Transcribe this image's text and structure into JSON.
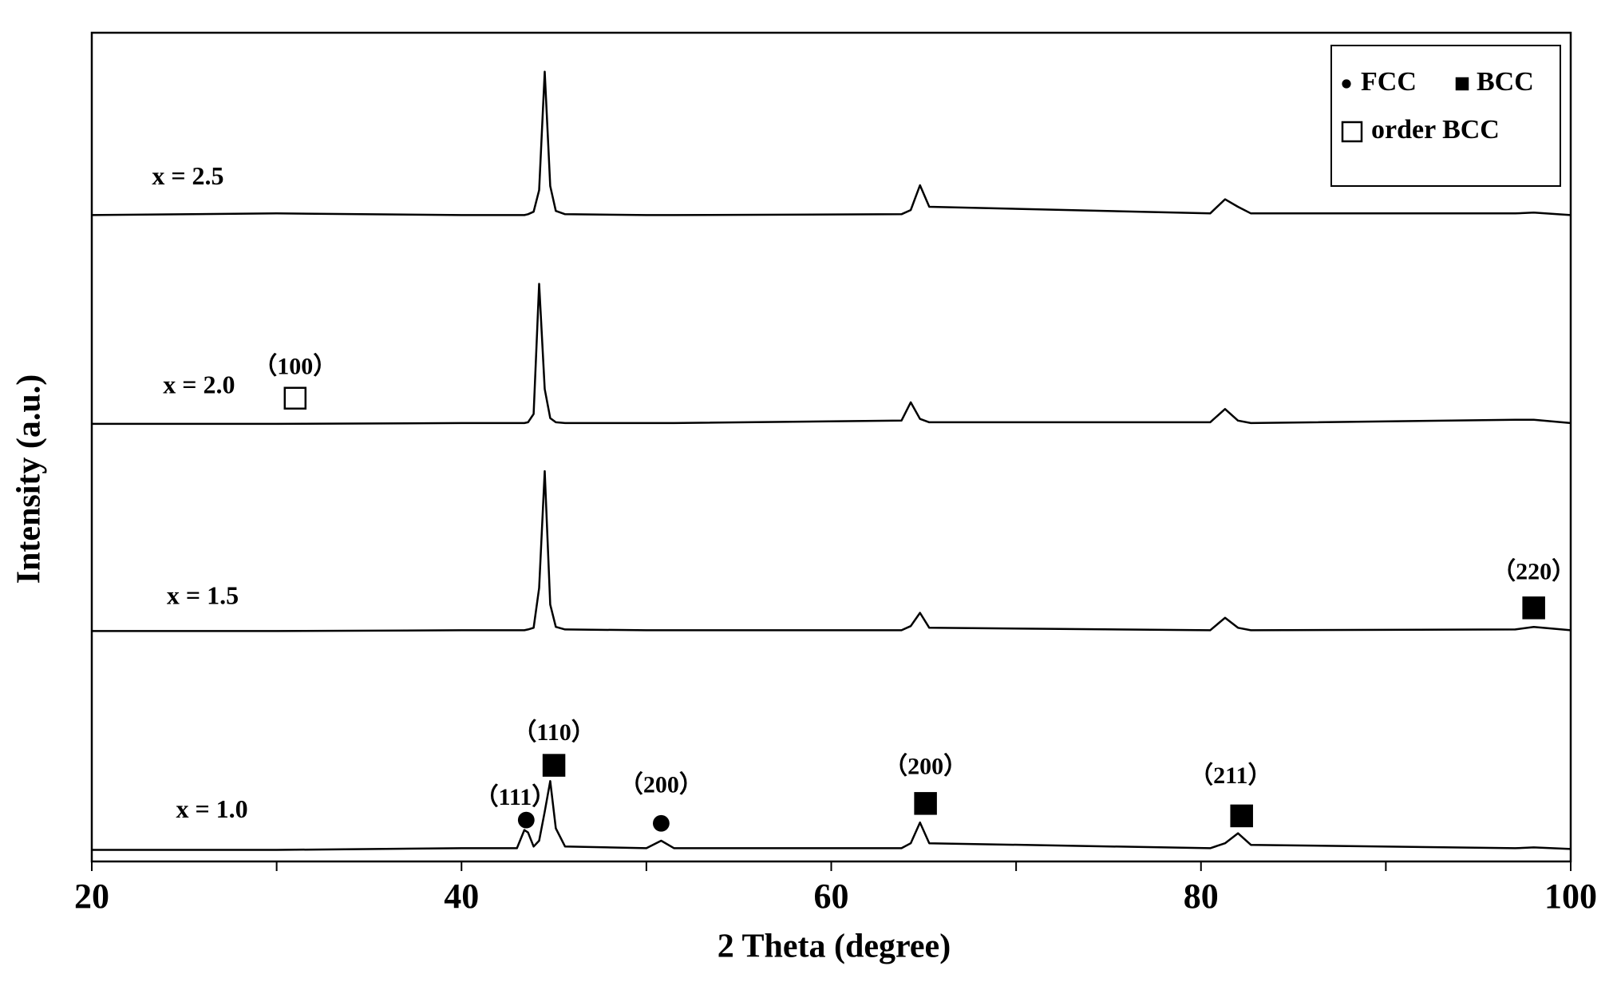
{
  "chart_data": {
    "type": "line",
    "x_label": "2 Theta (degree)",
    "y_label": "Intensity (a.u.)",
    "xlim": [
      20,
      100
    ],
    "xticks": [
      20,
      40,
      60,
      80,
      100
    ],
    "xminorticks": [
      30,
      50,
      70,
      90
    ],
    "ylim": [
      0,
      100
    ],
    "color": "#000000",
    "x": [
      20,
      30,
      40,
      43,
      43.4,
      43.6,
      43.9,
      44.2,
      44.5,
      44.8,
      45.1,
      45.6,
      50,
      50.8,
      51.5,
      63.8,
      64.3,
      64.8,
      65.3,
      80.5,
      81.3,
      82,
      82.7,
      97,
      98,
      100
    ],
    "series": [
      {
        "name": "x = 1.0",
        "label_at": [
          26.5,
          6.0
        ],
        "values": [
          1.4,
          1.4,
          1.6,
          1.6,
          3.8,
          3.5,
          1.8,
          2.5,
          6,
          9.7,
          4,
          1.8,
          1.6,
          2.5,
          1.6,
          1.6,
          2.2,
          4.7,
          2.2,
          1.6,
          2.2,
          3.4,
          2.0,
          1.6,
          1.7,
          1.5
        ]
      },
      {
        "name": "x = 1.5",
        "label_at": [
          26.0,
          31.8
        ],
        "values": [
          27.8,
          27.8,
          27.9,
          27.9,
          27.9,
          28.0,
          28.2,
          33,
          47.1,
          31,
          28.3,
          28.0,
          27.9,
          27.9,
          27.9,
          27.9,
          28.4,
          30.0,
          28.2,
          27.9,
          29.4,
          28.2,
          27.9,
          28.0,
          28.3,
          27.9
        ]
      },
      {
        "name": "x = 2.0",
        "label_at": [
          25.8,
          57.2
        ],
        "values": [
          52.8,
          52.8,
          52.9,
          52.9,
          52.9,
          53.0,
          54,
          69.7,
          57,
          53.5,
          53.0,
          52.9,
          52.9,
          52.9,
          52.9,
          53.2,
          55.4,
          53.4,
          53.0,
          53.0,
          54.6,
          53.2,
          52.9,
          53.3,
          53.3,
          52.9
        ]
      },
      {
        "name": "x = 2.5",
        "label_at": [
          25.2,
          82.4
        ],
        "values": [
          78.0,
          78.2,
          78.0,
          78.0,
          78.0,
          78.1,
          78.4,
          81,
          95.3,
          81.5,
          78.5,
          78.1,
          78.0,
          78.0,
          78.0,
          78.1,
          78.6,
          81.6,
          79,
          78.2,
          79.9,
          79.0,
          78.2,
          78.2,
          78.3,
          78.0
        ]
      }
    ],
    "annotations": [
      {
        "text": "（100）",
        "x": 31,
        "y": 59.5,
        "marker": "square-open",
        "marker_at": [
          31,
          55.9
        ]
      },
      {
        "text": "（110）",
        "x": 45.0,
        "y": 15.3,
        "marker": "square-filled",
        "marker_at": [
          45.0,
          11.6
        ]
      },
      {
        "text": "（111）",
        "x": 42.9,
        "y": 7.5,
        "marker": "circle",
        "marker_at": [
          43.5,
          5.0
        ]
      },
      {
        "text": "（200）",
        "x": 50.8,
        "y": 9.0,
        "marker": "circle",
        "marker_at": [
          50.8,
          4.6
        ]
      },
      {
        "text": "（200）",
        "x": 65.1,
        "y": 11.2,
        "marker": "square-filled",
        "marker_at": [
          65.1,
          7.0
        ]
      },
      {
        "text": "（211）",
        "x": 81.6,
        "y": 10.1,
        "marker": "square-filled",
        "marker_at": [
          82.2,
          5.5
        ]
      },
      {
        "text": "（220）",
        "x": 98.0,
        "y": 34.7,
        "marker": "square-filled",
        "marker_at": [
          98.0,
          30.6
        ]
      }
    ],
    "legend": [
      {
        "marker": "circle",
        "label": "FCC"
      },
      {
        "marker": "square-filled",
        "label": "BCC"
      },
      {
        "marker": "square-open",
        "label": "order BCC"
      }
    ]
  }
}
